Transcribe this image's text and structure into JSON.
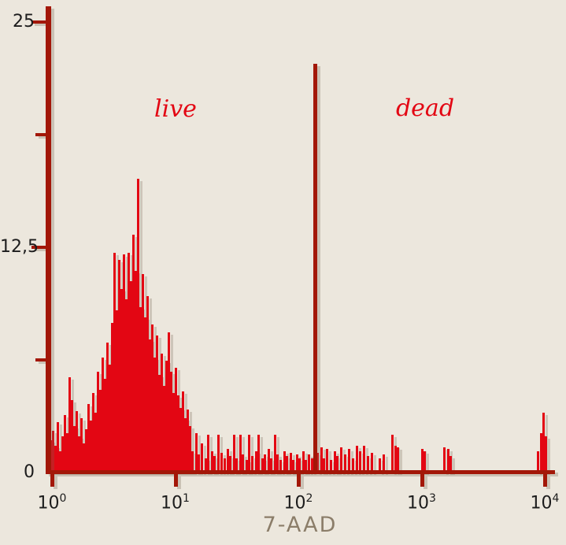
{
  "background_color": "#ece7dd",
  "colors": {
    "series": "#e30613",
    "axis": "#a31708",
    "tick_text": "#1c1c1c",
    "axis_title": "#8b7d69"
  },
  "chart_data": {
    "type": "bar",
    "subtype": "flow-cytometry-histogram",
    "title": "",
    "xlabel": "7-AAD",
    "ylabel": "",
    "x_scale": "log10",
    "xlim_log": [
      0,
      4
    ],
    "ylim": [
      0,
      25
    ],
    "grid": "off",
    "x_ticks": [
      {
        "log": 0,
        "base": "10",
        "exp": "0"
      },
      {
        "log": 1,
        "base": "10",
        "exp": "1"
      },
      {
        "log": 2,
        "base": "10",
        "exp": "2"
      },
      {
        "log": 3,
        "base": "10",
        "exp": "3"
      },
      {
        "log": 4,
        "base": "10",
        "exp": "4"
      }
    ],
    "y_ticks": [
      {
        "value": 25,
        "label": "25",
        "major": true,
        "mark": true
      },
      {
        "value": 18.75,
        "label": "",
        "major": false,
        "mark": true
      },
      {
        "value": 12.5,
        "label": "12,5",
        "major": true,
        "mark": true
      },
      {
        "value": 6.25,
        "label": "",
        "major": false,
        "mark": true
      },
      {
        "value": 0,
        "label": "0",
        "major": true,
        "mark": false
      }
    ],
    "gate": {
      "x_log": 2.13,
      "label_left": "live",
      "label_right": "dead"
    },
    "bars_dense": {
      "start_log": -0.019,
      "step_log": 0.0192,
      "values": [
        1.8,
        2.3,
        1.5,
        2.8,
        1.2,
        2.0,
        3.2,
        2.2,
        5.3,
        4.0,
        2.6,
        3.4,
        2.0,
        3.0,
        1.6,
        2.4,
        3.8,
        2.9,
        4.4,
        3.3,
        5.6,
        4.6,
        6.4,
        5.2,
        7.2,
        6.0,
        8.3,
        12.2,
        9.0,
        11.8,
        10.2,
        12.1,
        9.6,
        12.2,
        10.6,
        13.2,
        11.2,
        16.3,
        9.2,
        11.0,
        8.6,
        9.8,
        7.4,
        8.2,
        6.4,
        7.6,
        5.4,
        6.6,
        4.8,
        6.2,
        7.8,
        5.6,
        4.4,
        5.8,
        4.3,
        3.6,
        4.5,
        3.0,
        3.5,
        2.6
      ]
    },
    "bars_sparse": [
      [
        1.137,
        1.2
      ],
      [
        1.163,
        2.2
      ],
      [
        1.188,
        1.0
      ],
      [
        1.214,
        1.6
      ],
      [
        1.24,
        0.8
      ],
      [
        1.265,
        2.1
      ],
      [
        1.291,
        1.2
      ],
      [
        1.316,
        0.9
      ],
      [
        1.342,
        2.1
      ],
      [
        1.368,
        1.1
      ],
      [
        1.393,
        0.8
      ],
      [
        1.419,
        1.3
      ],
      [
        1.444,
        0.9
      ],
      [
        1.47,
        2.1
      ],
      [
        1.495,
        0.8
      ],
      [
        1.521,
        2.1
      ],
      [
        1.546,
        1.0
      ],
      [
        1.572,
        0.7
      ],
      [
        1.597,
        2.1
      ],
      [
        1.623,
        0.9
      ],
      [
        1.649,
        1.2
      ],
      [
        1.674,
        2.1
      ],
      [
        1.7,
        0.8
      ],
      [
        1.725,
        1.0
      ],
      [
        1.751,
        1.3
      ],
      [
        1.776,
        0.8
      ],
      [
        1.802,
        2.1
      ],
      [
        1.827,
        1.0
      ],
      [
        1.853,
        0.7
      ],
      [
        1.879,
        1.2
      ],
      [
        1.904,
        0.9
      ],
      [
        1.93,
        1.1
      ],
      [
        1.955,
        0.7
      ],
      [
        1.981,
        1.0
      ],
      [
        2.006,
        0.8
      ],
      [
        2.032,
        1.2
      ],
      [
        2.057,
        0.7
      ],
      [
        2.083,
        1.0
      ],
      [
        2.108,
        0.8
      ],
      [
        2.153,
        1.1
      ],
      [
        2.179,
        1.4
      ],
      [
        2.204,
        0.8
      ],
      [
        2.23,
        1.3
      ],
      [
        2.256,
        0.7
      ],
      [
        2.288,
        1.2
      ],
      [
        2.313,
        0.9
      ],
      [
        2.345,
        1.4
      ],
      [
        2.371,
        1.0
      ],
      [
        2.403,
        1.3
      ],
      [
        2.435,
        0.8
      ],
      [
        2.467,
        1.5
      ],
      [
        2.498,
        1.2
      ],
      [
        2.53,
        1.5
      ],
      [
        2.562,
        0.9
      ],
      [
        2.594,
        1.1
      ],
      [
        2.652,
        0.8
      ],
      [
        2.684,
        1.0
      ],
      [
        2.754,
        2.1
      ],
      [
        2.78,
        1.5
      ],
      [
        2.805,
        1.4
      ],
      [
        2.997,
        1.3
      ],
      [
        3.022,
        1.2
      ],
      [
        3.176,
        1.4
      ],
      [
        3.208,
        1.3
      ],
      [
        3.233,
        0.9
      ],
      [
        3.942,
        1.2
      ],
      [
        3.962,
        2.2
      ],
      [
        3.981,
        3.3
      ],
      [
        4.0,
        2.0
      ]
    ]
  }
}
